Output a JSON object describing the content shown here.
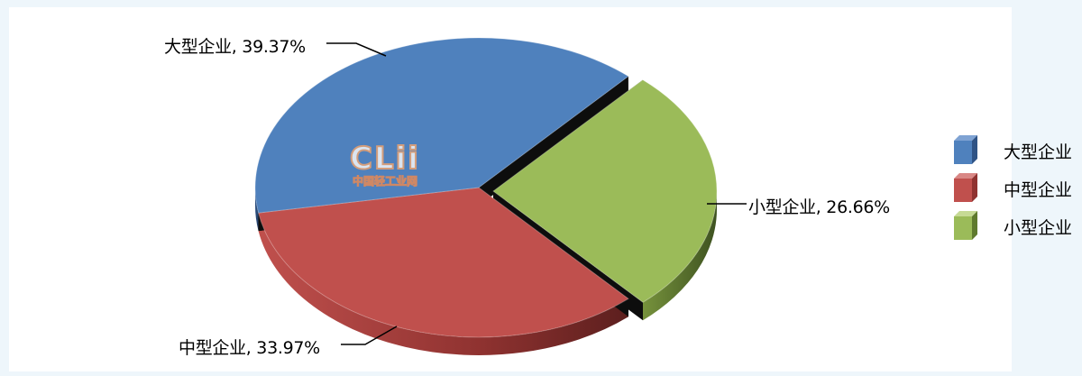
{
  "chart_data": {
    "type": "pie",
    "title": "",
    "slices": [
      {
        "name": "大型企业",
        "value": 39.37,
        "label": "大型企业, 39.37%",
        "color": "#4f81bd"
      },
      {
        "name": "中型企业",
        "value": 33.97,
        "label": "中型企业, 33.97%",
        "color": "#c0504d"
      },
      {
        "name": "小型企业",
        "value": 26.66,
        "label": "小型企业, 26.66%",
        "color": "#9bbb59"
      }
    ],
    "legend": {
      "position": "right",
      "entries": [
        "大型企业",
        "中型企业",
        "小型企业"
      ]
    },
    "style": "3d-exploded"
  },
  "watermark": {
    "logo": "CLii",
    "text": "中国轻工业网"
  }
}
